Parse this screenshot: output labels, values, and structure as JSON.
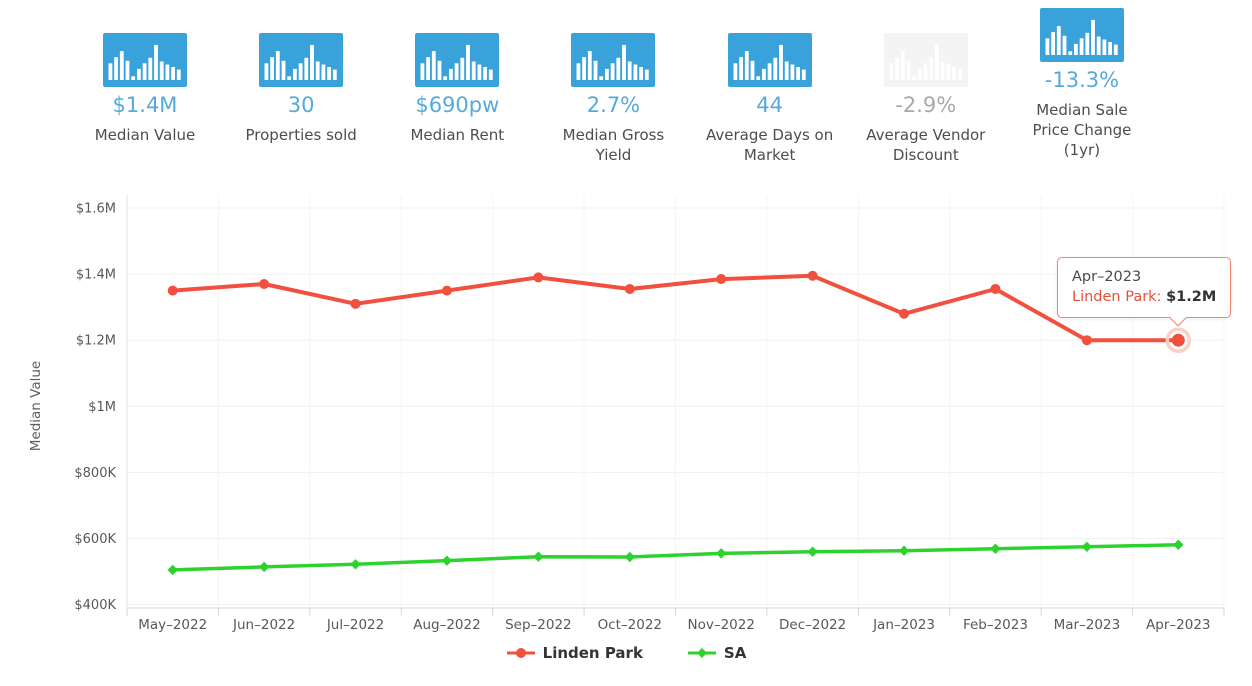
{
  "colors": {
    "accent_blue": "#3aa2da",
    "stat_value_blue": "#56a9dc",
    "muted_gray": "#a9a9a9",
    "label_gray": "#4d4d4d",
    "linden_park_red": "#f2503e",
    "sa_green": "#2ed22e",
    "tooltip_border": "#f3826e"
  },
  "stats": {
    "cards": [
      {
        "id": "median-value",
        "icon": "bar-chart-icon",
        "value": "$1.4M",
        "label": "Median Value",
        "muted": false
      },
      {
        "id": "properties-sold",
        "icon": "bar-chart-icon",
        "value": "30",
        "label": "Properties sold",
        "muted": false
      },
      {
        "id": "median-rent",
        "icon": "bar-chart-icon",
        "value": "$690pw",
        "label": "Median Rent",
        "muted": false
      },
      {
        "id": "median-gross-yield",
        "icon": "bar-chart-icon",
        "value": "2.7%",
        "label": "Median Gross Yield",
        "muted": false
      },
      {
        "id": "average-days-on-market",
        "icon": "bar-chart-icon",
        "value": "44",
        "label": "Average Days on Market",
        "muted": false
      },
      {
        "id": "average-vendor-discount",
        "icon": "bar-chart-icon",
        "value": "-2.9%",
        "label": "Average Vendor Discount",
        "muted": true
      },
      {
        "id": "median-sale-price-change-1yr",
        "icon": "bar-chart-icon",
        "value": "-13.3%",
        "label": "Median Sale Price Change (1yr)",
        "muted": false
      }
    ]
  },
  "chart_data": {
    "type": "line",
    "ylabel": "Median Value",
    "x": [
      "May–2022",
      "Jun–2022",
      "Jul–2022",
      "Aug–2022",
      "Sep–2022",
      "Oct–2022",
      "Nov–2022",
      "Dec–2022",
      "Jan–2023",
      "Feb–2023",
      "Mar–2023",
      "Apr–2023"
    ],
    "series": [
      {
        "name": "Linden Park",
        "color": "#f2503e",
        "marker": "circle",
        "values": [
          1350000,
          1370000,
          1310000,
          1350000,
          1390000,
          1355000,
          1385000,
          1395000,
          1280000,
          1355000,
          1200000,
          1200000
        ]
      },
      {
        "name": "SA",
        "color": "#2ed22e",
        "marker": "diamond",
        "values": [
          505000,
          514000,
          522000,
          533000,
          545000,
          544000,
          555000,
          560000,
          563000,
          569000,
          575000,
          581000
        ]
      }
    ],
    "ylim": [
      400000,
      1600000
    ],
    "yticks": [
      {
        "value": 400000,
        "label": "$400K"
      },
      {
        "value": 600000,
        "label": "$600K"
      },
      {
        "value": 800000,
        "label": "$800K"
      },
      {
        "value": 1000000,
        "label": "$1M"
      },
      {
        "value": 1200000,
        "label": "$1.2M"
      },
      {
        "value": 1400000,
        "label": "$1.4M"
      },
      {
        "value": 1600000,
        "label": "$1.6M"
      }
    ],
    "grid": true,
    "legend_position": "bottom",
    "highlight": {
      "series_index": 0,
      "point_index": 11
    }
  },
  "tooltip": {
    "date": "Apr–2023",
    "series_label": "Linden Park:",
    "value": "$1.2M"
  }
}
